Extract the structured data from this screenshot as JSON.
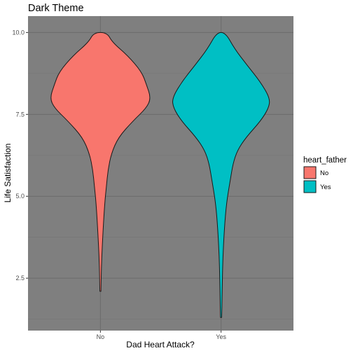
{
  "chart_data": {
    "type": "violin",
    "title": "Dark Theme",
    "xlabel": "Dad Heart Attack?",
    "ylabel": "Life Satisfaction",
    "categories": [
      "No",
      "Yes"
    ],
    "ylim": [
      0.9,
      10.5
    ],
    "yticks": [
      2.5,
      5.0,
      7.5,
      10.0
    ],
    "ytick_labels": [
      "2.5",
      "5.0",
      "7.5",
      "10.0"
    ],
    "grid": true,
    "legend": {
      "title": "heart_father",
      "position": "right",
      "entries": [
        "No",
        "Yes"
      ]
    },
    "colors": {
      "No": "#F8766D",
      "Yes": "#00BFC4",
      "panel": "#7f7f7f",
      "grid_major": "#6b6b6b",
      "grid_minor": "#747474"
    },
    "series": [
      {
        "name": "No",
        "min": 2.1,
        "max": 10.0,
        "density": [
          [
            2.1,
            0.01
          ],
          [
            3.0,
            0.02
          ],
          [
            4.0,
            0.05
          ],
          [
            4.8,
            0.08
          ],
          [
            5.3,
            0.11
          ],
          [
            5.8,
            0.14
          ],
          [
            6.3,
            0.2
          ],
          [
            6.8,
            0.33
          ],
          [
            7.3,
            0.6
          ],
          [
            7.7,
            0.85
          ],
          [
            8.0,
            0.93
          ],
          [
            8.4,
            0.85
          ],
          [
            8.8,
            0.76
          ],
          [
            9.3,
            0.5
          ],
          [
            9.7,
            0.22
          ],
          [
            10.0,
            0.12
          ]
        ]
      },
      {
        "name": "Yes",
        "min": 1.3,
        "max": 10.0,
        "density": [
          [
            1.3,
            0.01
          ],
          [
            2.0,
            0.02
          ],
          [
            3.0,
            0.03
          ],
          [
            4.0,
            0.06
          ],
          [
            4.8,
            0.1
          ],
          [
            5.5,
            0.17
          ],
          [
            6.0,
            0.22
          ],
          [
            6.4,
            0.3
          ],
          [
            6.8,
            0.46
          ],
          [
            7.3,
            0.73
          ],
          [
            7.7,
            0.88
          ],
          [
            8.0,
            0.9
          ],
          [
            8.5,
            0.72
          ],
          [
            9.0,
            0.48
          ],
          [
            9.5,
            0.25
          ],
          [
            10.0,
            0.08
          ]
        ]
      }
    ]
  }
}
